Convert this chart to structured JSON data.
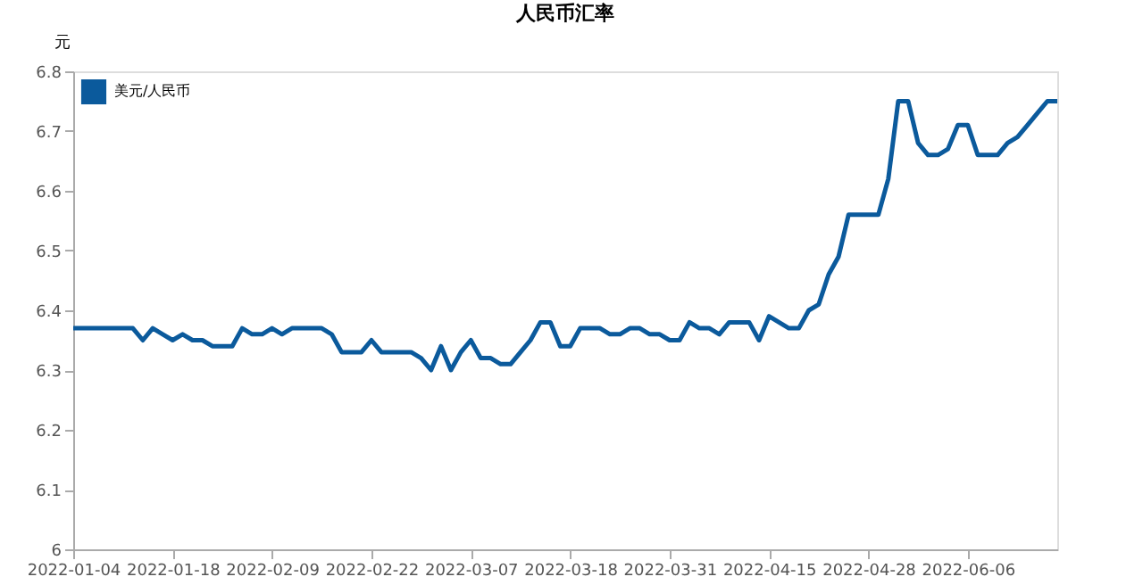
{
  "chart_data": {
    "type": "line",
    "title": "人民币汇率",
    "ylabel": "元",
    "categories": [
      "2022-01-04",
      null,
      null,
      null,
      null,
      null,
      null,
      null,
      null,
      null,
      "2022-01-18",
      null,
      null,
      null,
      null,
      null,
      null,
      null,
      null,
      null,
      "2022-02-09",
      null,
      null,
      null,
      null,
      null,
      null,
      null,
      null,
      null,
      "2022-02-22",
      null,
      null,
      null,
      null,
      null,
      null,
      null,
      null,
      null,
      "2022-03-07",
      null,
      null,
      null,
      null,
      null,
      null,
      null,
      null,
      null,
      "2022-03-18",
      null,
      null,
      null,
      null,
      null,
      null,
      null,
      null,
      null,
      "2022-03-31",
      null,
      null,
      null,
      null,
      null,
      null,
      null,
      null,
      null,
      "2022-04-15",
      null,
      null,
      null,
      null,
      null,
      null,
      null,
      null,
      null,
      "2022-04-28",
      null,
      null,
      null,
      null,
      null,
      null,
      null,
      null,
      null,
      "2022-06-06",
      null,
      null,
      null,
      null,
      null,
      null,
      null,
      null,
      null
    ],
    "series": [
      {
        "name": "美元/人民币",
        "color": "#0b5a9c",
        "values": [
          6.37,
          6.37,
          6.37,
          6.37,
          6.37,
          6.37,
          6.37,
          6.35,
          6.37,
          6.36,
          6.35,
          6.36,
          6.35,
          6.35,
          6.34,
          6.34,
          6.34,
          6.37,
          6.36,
          6.36,
          6.37,
          6.36,
          6.37,
          6.37,
          6.37,
          6.37,
          6.36,
          6.33,
          6.33,
          6.33,
          6.35,
          6.33,
          6.33,
          6.33,
          6.33,
          6.32,
          6.3,
          6.34,
          6.3,
          6.33,
          6.35,
          6.32,
          6.32,
          6.31,
          6.31,
          6.33,
          6.35,
          6.38,
          6.38,
          6.34,
          6.34,
          6.37,
          6.37,
          6.37,
          6.36,
          6.36,
          6.37,
          6.37,
          6.36,
          6.36,
          6.35,
          6.35,
          6.38,
          6.37,
          6.37,
          6.36,
          6.38,
          6.38,
          6.38,
          6.35,
          6.39,
          6.38,
          6.37,
          6.37,
          6.4,
          6.41,
          6.46,
          6.49,
          6.56,
          6.56,
          6.56,
          6.56,
          6.62,
          6.75,
          6.75,
          6.68,
          6.66,
          6.66,
          6.67,
          6.71,
          6.71,
          6.66,
          6.66,
          6.66,
          6.68,
          6.69,
          6.71,
          6.73,
          6.75,
          6.75
        ]
      }
    ],
    "ylim": [
      6,
      6.8
    ],
    "yticks": [
      {
        "value": 6,
        "label": "6"
      },
      6.1,
      6.2,
      6.3,
      6.4,
      6.5,
      6.6,
      6.7,
      6.8
    ],
    "grid": false,
    "legend": "top left",
    "marker": "none",
    "line_style": "solid"
  }
}
